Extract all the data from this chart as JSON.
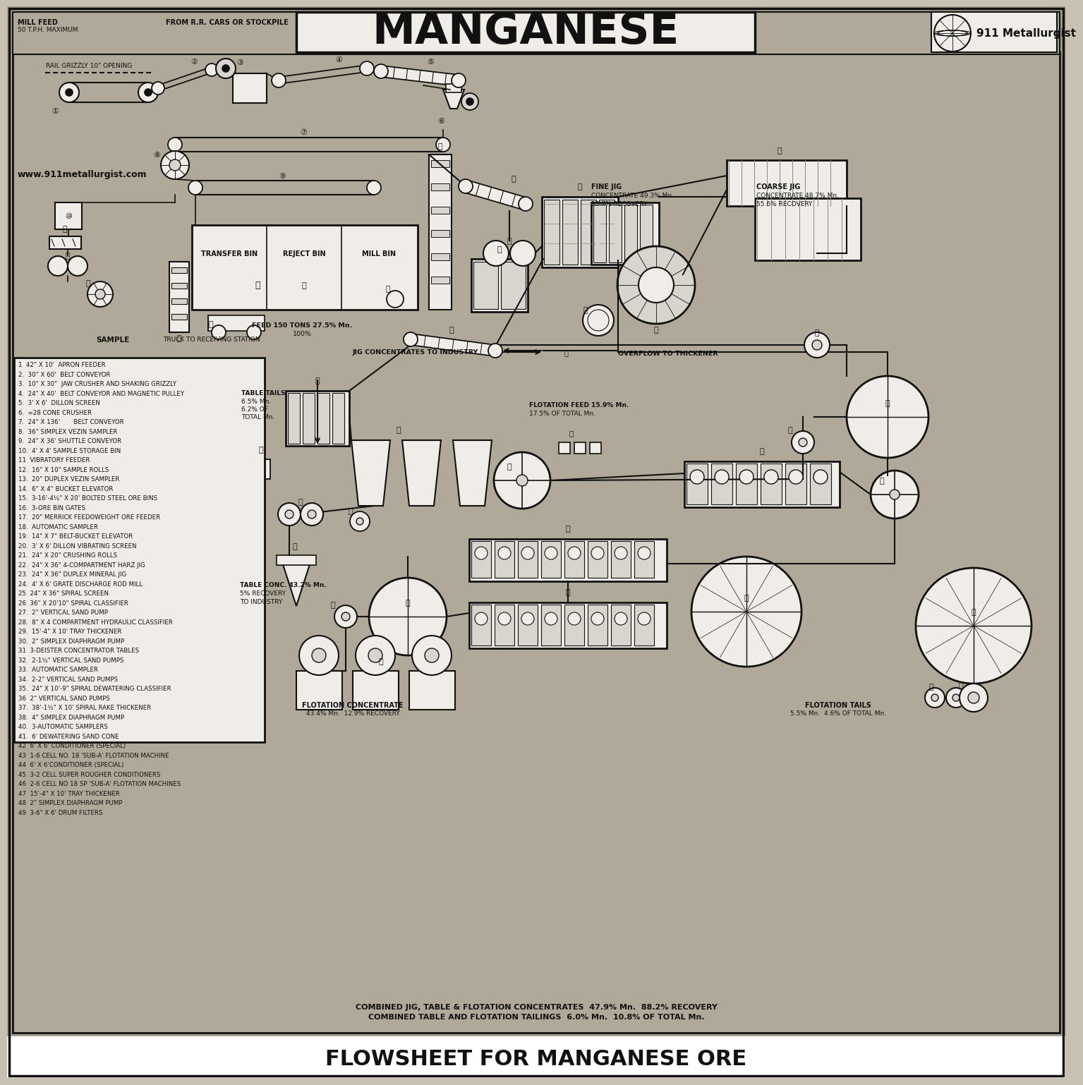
{
  "title_main": "MANGANESE",
  "title_bottom": "FLOWSHEET FOR MANGANESE ORE",
  "watermark": "www.911metallurgist.com",
  "logo_text": "911 Metallurgist",
  "bg_color": "#a8a090",
  "inner_bg": "#b0a898",
  "white": "#f5f2ee",
  "equipment_list_col1": [
    "1  42\" X 10'  APRON FEEDER",
    "2.  30\" X 60'  BELT CONVEYOR",
    "3.  10\" X 30\"  JAW CRUSHER AND SHAKING GRIZZLY",
    "4.  24\" X 40'  BELT CONVEYOR AND MAGNETIC PULLEY",
    "5.  3' X 6'  DILLON SCREEN",
    "6.  =28 CONE CRUSHER",
    "7.  24\" X 136'       BELT CONVEYOR",
    "8.  36\" SIMPLEX VEZIN SAMPLER",
    "9.  24\" X 36' SHUTTLE CONVEYOR",
    "10.  4' X 4' SAMPLE STORAGE BIN",
    "11  VIBRATORY FEEDER",
    "12.  16\" X 10\" SAMPLE ROLLS",
    "13.  20\" DUPLEX VEZIN SAMPLER",
    "14.  6\" X 4\" BUCKET ELEVATOR",
    "15.  3-16'-4½\" X 20' BOLTED STEEL ORE BINS",
    "16.  3-ORE BIN GATES",
    "17.  20\" MERRICK FEEDOWEIGHT ORE FEEDER",
    "18.  AUTOMATIC SAMPLER",
    "19.  14\" X 7\" BELT-BUCKET ELEVATOR",
    "20.  3' X 6' DILLON VIBRATING SCREEN",
    "21.  24\" X 20\" CRUSHING ROLLS",
    "22.  24\" X 36\" 4-COMPARTMENT HARZ JIG",
    "23.  24\" X 36\" DUPLEX MINERAL JIG",
    "24.  4' X 6' GRATE DISCHARGE ROD MILL",
    "25  24\" X 36\" SPIRAL SCREEN",
    "26  36\" X 20'10\" SPIRAL CLASSIFIER",
    "27.  2\" VERTICAL SAND PUMP",
    "28.  8\" X 4 COMPARTMENT HYDRAULIC CLASSIFIER",
    "29.  15'-4\" X 10' TRAY THICKENER",
    "30.  2\" SIMPLEX DIAPHRAGM PUMP",
    "31  3-DEISTER CONCENTRATOR TABLES",
    "32.  2-1½\" VERTICAL SAND PUMPS",
    "33.  AUTOMATIC SAMPLER",
    "34.  2-2\" VERTICAL SAND PUMPS",
    "35.  24\" X 10'-9\" SPIRAL DEWATERING CLASSIFIER",
    "36  2\" VERTICAL SAND PUMPS",
    "37.  38'-1½\" X 10' SPIRAL RAKE THICKENER",
    "38.  4\" SIMPLEX DIAPHRAGM PUMP",
    "40.  3-AUTOMATIC SAMPLERS",
    "41.  6' DEWATERING SAND CONE",
    "42  6' X 6' CONDITIONER (SPECIAL)",
    "43  1-6 CELL NO. 18 'SUB-A' FLOTATION MACHINE",
    "44  6' X 6'CONDITIONER (SPECIAL)",
    "45  3-2 CELL SUPER ROUGHER CONDITIONERS",
    "46  2-6 CELL NO 18 SP 'SUB-A' FLOTATION MACHINES",
    "47  15'-4\" X 10' TRAY THICKENER",
    "48  2\" SIMPLEX DIAPHRAGM PUMP",
    "49  3-6\" X 6' DRUM FILTERS"
  ],
  "figsize": [
    15.0,
    15.19
  ],
  "dpi": 100
}
